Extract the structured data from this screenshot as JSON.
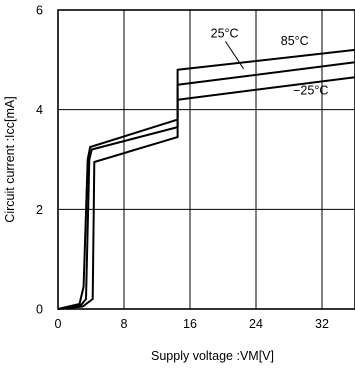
{
  "chart_data": {
    "type": "line",
    "title": "",
    "xlabel": "Supply voltage :VM[V]",
    "ylabel": "Circuit current :Icc[mA]",
    "xlim": [
      0,
      36
    ],
    "ylim": [
      0,
      6
    ],
    "xticks": [
      0,
      8,
      16,
      24,
      32
    ],
    "yticks": [
      0,
      2,
      4,
      6
    ],
    "xtick_labels": [
      "0",
      "8",
      "16",
      "24",
      "32"
    ],
    "ytick_labels": [
      "0",
      "2",
      "4",
      "6"
    ],
    "grid": true,
    "series": [
      {
        "name": "85°C",
        "x": [
          0,
          2.6,
          3.1,
          3.6,
          3.9,
          14.5,
          14.5,
          36
        ],
        "y": [
          0,
          0.1,
          0.45,
          3.0,
          3.25,
          3.8,
          4.8,
          5.2
        ]
      },
      {
        "name": "25°C",
        "x": [
          0,
          2.8,
          3.4,
          3.8,
          4.1,
          14.5,
          14.5,
          36
        ],
        "y": [
          0,
          0.08,
          0.2,
          3.0,
          3.2,
          3.65,
          4.5,
          4.95
        ]
      },
      {
        "name": "−25°C",
        "x": [
          0,
          3.0,
          4.2,
          4.4,
          14.5,
          14.5,
          36
        ],
        "y": [
          0,
          0.05,
          0.2,
          2.95,
          3.45,
          4.2,
          4.65
        ]
      }
    ],
    "annotations": [
      {
        "text": "25°C",
        "x": 18.5,
        "y": 5.45,
        "target_series": "25°C",
        "target_x": 22.5,
        "target_y": 4.82
      },
      {
        "text": "85°C",
        "x": 27.0,
        "y": 5.3
      },
      {
        "text": "−25°C",
        "x": 28.5,
        "y": 4.3
      }
    ]
  }
}
